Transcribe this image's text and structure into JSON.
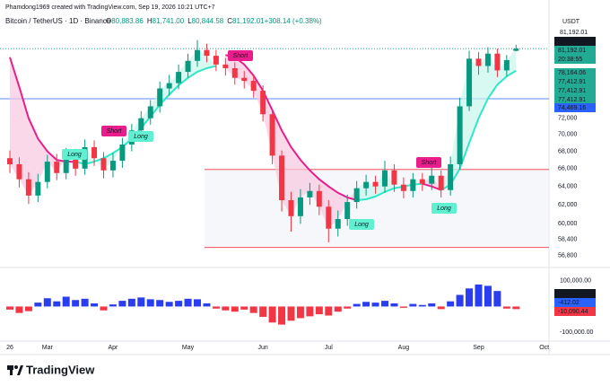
{
  "chart_data": {
    "type": "candlestick",
    "header": "Phamdong1969 created with TradingView.com, Sep 19, 2026 10:21 UTC+7",
    "title": "Bitcoin / TetherUS · 1D · Binance",
    "legend": [
      {
        "key": "O",
        "label": "80,883.86"
      },
      {
        "key": "H",
        "label": "81,741.00"
      },
      {
        "key": "L",
        "label": "80,844.58"
      },
      {
        "key": "C",
        "label": "81,192.01"
      },
      {
        "key": "",
        "label": "+308.14 (+0.38%)"
      }
    ],
    "currency": "USDT",
    "categories": [
      "26",
      null,
      null,
      null,
      "Mar",
      null,
      null,
      null,
      null,
      null,
      null,
      "Apr",
      null,
      null,
      null,
      null,
      null,
      null,
      null,
      "May",
      null,
      null,
      null,
      null,
      null,
      null,
      null,
      "Jun",
      null,
      null,
      null,
      null,
      null,
      null,
      "Jul",
      null,
      null,
      null,
      null,
      null,
      null,
      null,
      "Aug",
      null,
      null,
      null,
      null,
      null,
      null,
      null,
      "Sep",
      null,
      null,
      null,
      null,
      null,
      null,
      "Oct"
    ],
    "open": [
      67200,
      66500,
      64800,
      63000,
      64500,
      66800,
      65500,
      67500,
      66000,
      68500,
      67200,
      65800,
      66900,
      68800,
      70500,
      72000,
      73500,
      75800,
      76500,
      78000,
      79500,
      81000,
      80200,
      79000,
      78500,
      77200,
      76800,
      75500,
      72500,
      67500,
      62500,
      60800,
      62800,
      63500,
      61800,
      59500,
      60500,
      62300,
      63800,
      64500,
      64000,
      65800,
      64200,
      63500,
      64800,
      64300,
      65200,
      63600,
      66500,
      73500,
      79800,
      78800,
      80500,
      78200,
      80883.86,
      null,
      null,
      null
    ],
    "high": [
      68100,
      67300,
      65600,
      65400,
      67600,
      67700,
      68400,
      68300,
      69400,
      69300,
      67900,
      67800,
      69600,
      71300,
      72900,
      74300,
      76700,
      77600,
      79000,
      80500,
      82400,
      81900,
      81000,
      79900,
      79300,
      78100,
      77600,
      76200,
      73200,
      68100,
      63400,
      63700,
      64400,
      64200,
      62500,
      61400,
      63100,
      64600,
      65300,
      65200,
      66900,
      66500,
      65000,
      65500,
      65500,
      66100,
      65800,
      67400,
      74600,
      80900,
      80700,
      81400,
      81200,
      80300,
      81741,
      null,
      null,
      null
    ],
    "low": [
      65500,
      63900,
      62100,
      62300,
      63800,
      64700,
      64800,
      65200,
      65300,
      66300,
      64900,
      65000,
      66100,
      68000,
      69700,
      71200,
      72700,
      74900,
      75700,
      77200,
      78700,
      79300,
      78100,
      77500,
      76300,
      75800,
      74600,
      71600,
      66500,
      61300,
      59200,
      60000,
      62000,
      60900,
      58100,
      58700,
      59800,
      61600,
      63000,
      63200,
      63300,
      63400,
      62700,
      62800,
      63500,
      63600,
      62800,
      63000,
      65900,
      72900,
      77600,
      77900,
      77300,
      77400,
      80844.58,
      null,
      null,
      null
    ],
    "close": [
      66500,
      64800,
      63000,
      64500,
      66800,
      65500,
      67500,
      66000,
      68500,
      67200,
      65800,
      66900,
      68800,
      70500,
      72000,
      73500,
      75800,
      76500,
      78000,
      79500,
      81000,
      80200,
      79000,
      78500,
      77200,
      76800,
      75500,
      72500,
      67500,
      62500,
      60800,
      62800,
      63500,
      61800,
      59500,
      60500,
      62300,
      63800,
      64500,
      64000,
      65800,
      64200,
      63500,
      64800,
      64300,
      65200,
      63600,
      66500,
      73500,
      79800,
      78800,
      80500,
      78200,
      79600,
      81192.01,
      null,
      null,
      null
    ],
    "up_color": "#089981",
    "down_color": "#f23645",
    "log_scale": true,
    "ylim": [
      55900,
      83000
    ],
    "yticks": [
      {
        "value": 56800,
        "label": "56,800"
      },
      {
        "value": 58400,
        "label": "58,400"
      },
      {
        "value": 60000,
        "label": "60,000"
      },
      {
        "value": 62000,
        "label": "62,000"
      },
      {
        "value": 64000,
        "label": "64,000"
      },
      {
        "value": 66000,
        "label": "66,000"
      },
      {
        "value": 68000,
        "label": "68,000"
      },
      {
        "value": 70000,
        "label": "70,000"
      },
      {
        "value": 72000,
        "label": "72,000"
      }
    ],
    "bear_line": {
      "color": "#e91e8c",
      "fill": "#f8c8e0",
      "values": [
        80000,
        76000,
        72000,
        69500,
        68000,
        67000,
        66800,
        66800,
        null,
        null,
        null,
        null,
        null,
        null,
        null,
        null,
        null,
        null,
        null,
        null,
        null,
        null,
        null,
        80300,
        80000,
        79000,
        77500,
        75500,
        73000,
        70500,
        68500,
        67000,
        65800,
        64800,
        64000,
        63300,
        62800,
        62500,
        null,
        null,
        null,
        null,
        null,
        null,
        64300,
        64000,
        63600,
        null,
        null,
        null,
        null,
        null,
        null,
        null,
        null,
        null,
        null,
        null
      ]
    },
    "bull_line": {
      "color": "#2ee8c6",
      "fill": "#c8f7ec",
      "values": [
        null,
        null,
        null,
        null,
        null,
        null,
        null,
        66800,
        66500,
        66800,
        67200,
        67800,
        68500,
        69500,
        70800,
        72200,
        73700,
        75000,
        76200,
        77200,
        78000,
        78500,
        78800,
        null,
        null,
        null,
        null,
        null,
        null,
        null,
        null,
        null,
        null,
        null,
        null,
        null,
        null,
        62500,
        62600,
        62900,
        63400,
        63800,
        64000,
        64200,
        64300,
        null,
        63600,
        64200,
        66000,
        69000,
        72000,
        74500,
        76300,
        77400,
        78164.06,
        null,
        null,
        null
      ]
    },
    "signals": [
      {
        "label": "Long",
        "color": "#5ef0d0"
      },
      {
        "label": "Short",
        "color": "#e91e8c"
      },
      {
        "label": "Long",
        "color": "#5ef0d0"
      },
      {
        "label": "Short",
        "color": "#e91e8c"
      },
      {
        "label": "Long",
        "color": "#5ef0d0"
      },
      {
        "label": "Short",
        "color": "#e91e8c"
      },
      {
        "label": "Long",
        "color": "#5ef0d0"
      }
    ],
    "hline": {
      "value": 74469.16,
      "color": "#2962ff"
    },
    "range_box": {
      "values": [
        65900,
        57600
      ],
      "color": "#f23645"
    },
    "price_labels": [
      {
        "value": 81192.01,
        "label": "81,192.01",
        "color": "#131722"
      },
      {
        "value": 81192.01,
        "label": "81,192.01",
        "color": "#22ab94"
      },
      {
        "label": "20:38:55",
        "color": "#22ab94"
      },
      {
        "value": 78164.06,
        "label": "78,164.06",
        "color": "#22ab94"
      },
      {
        "value": 77412.91,
        "label": "77,412.91",
        "color": "#22ab94"
      },
      {
        "value": 77412.91,
        "label": "77,412.91",
        "color": "#22ab94"
      },
      {
        "value": 77412.91,
        "label": "77,412.91",
        "color": "#22ab94"
      },
      {
        "value": 74469.16,
        "label": "74,469.16",
        "color": "#2962ff"
      }
    ],
    "top_label": {
      "value": 81192.01,
      "label": "81,192.01"
    },
    "indicator": {
      "type": "histogram",
      "up_color": "#2b3df0",
      "down_color": "#f23645",
      "values": [
        -12000,
        -25000,
        -18000,
        15000,
        32000,
        20000,
        38000,
        25000,
        30000,
        12000,
        -15000,
        8000,
        22000,
        30000,
        35000,
        28000,
        25000,
        18000,
        22000,
        30000,
        28000,
        12000,
        -8000,
        -15000,
        -20000,
        -12000,
        -25000,
        -40000,
        -62000,
        -70000,
        -55000,
        -45000,
        -38000,
        -30000,
        -35000,
        -20000,
        -8000,
        10000,
        18000,
        15000,
        22000,
        12000,
        -5000,
        10000,
        6000,
        12000,
        -10000,
        20000,
        45000,
        70000,
        85000,
        80000,
        60000,
        -8000,
        -10090.44,
        null,
        null,
        null
      ],
      "ylim": [
        -127000,
        144000
      ],
      "yticks": [
        {
          "value": 100000,
          "label": "100,000.00"
        },
        {
          "value": -100000,
          "label": "-100,000.00"
        }
      ],
      "labels": [
        {
          "value": 0,
          "label": "0.00",
          "color": "#131722"
        },
        {
          "value": -412.02,
          "label": "-412.02",
          "color": "#2962ff"
        },
        {
          "value": -10090.44,
          "label": "-10,090.44",
          "color": "#f23645"
        }
      ]
    },
    "brand": "TradingView"
  }
}
